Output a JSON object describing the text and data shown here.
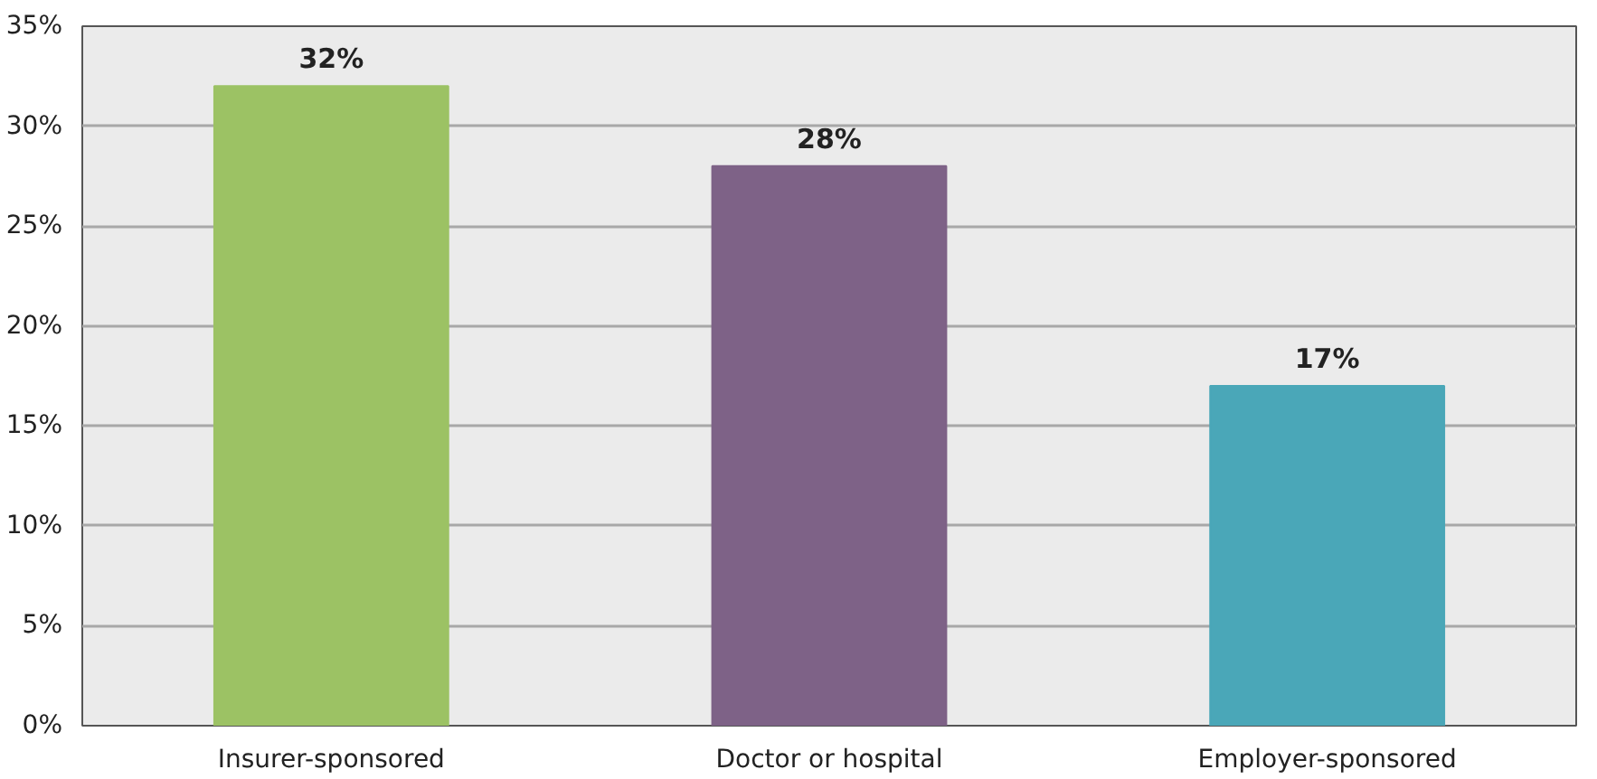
{
  "chart_data": {
    "type": "bar",
    "categories": [
      "Insurer-sponsored",
      "Doctor or hospital",
      "Employer-sponsored"
    ],
    "values": [
      32,
      28,
      17
    ],
    "colors": [
      "#9cc264",
      "#7e6287",
      "#4aa7b8"
    ],
    "value_labels": [
      "32%",
      "28%",
      "17%"
    ],
    "ylim": [
      0,
      35
    ],
    "yticks": [
      {
        "value": 0,
        "label": "0%"
      },
      {
        "value": 5,
        "label": "5%"
      },
      {
        "value": 10,
        "label": "10%"
      },
      {
        "value": 15,
        "label": "15%"
      },
      {
        "value": 20,
        "label": "20%"
      },
      {
        "value": 25,
        "label": "25%"
      },
      {
        "value": 30,
        "label": "30%"
      },
      {
        "value": 35,
        "label": "35%"
      }
    ],
    "grid": "y"
  }
}
